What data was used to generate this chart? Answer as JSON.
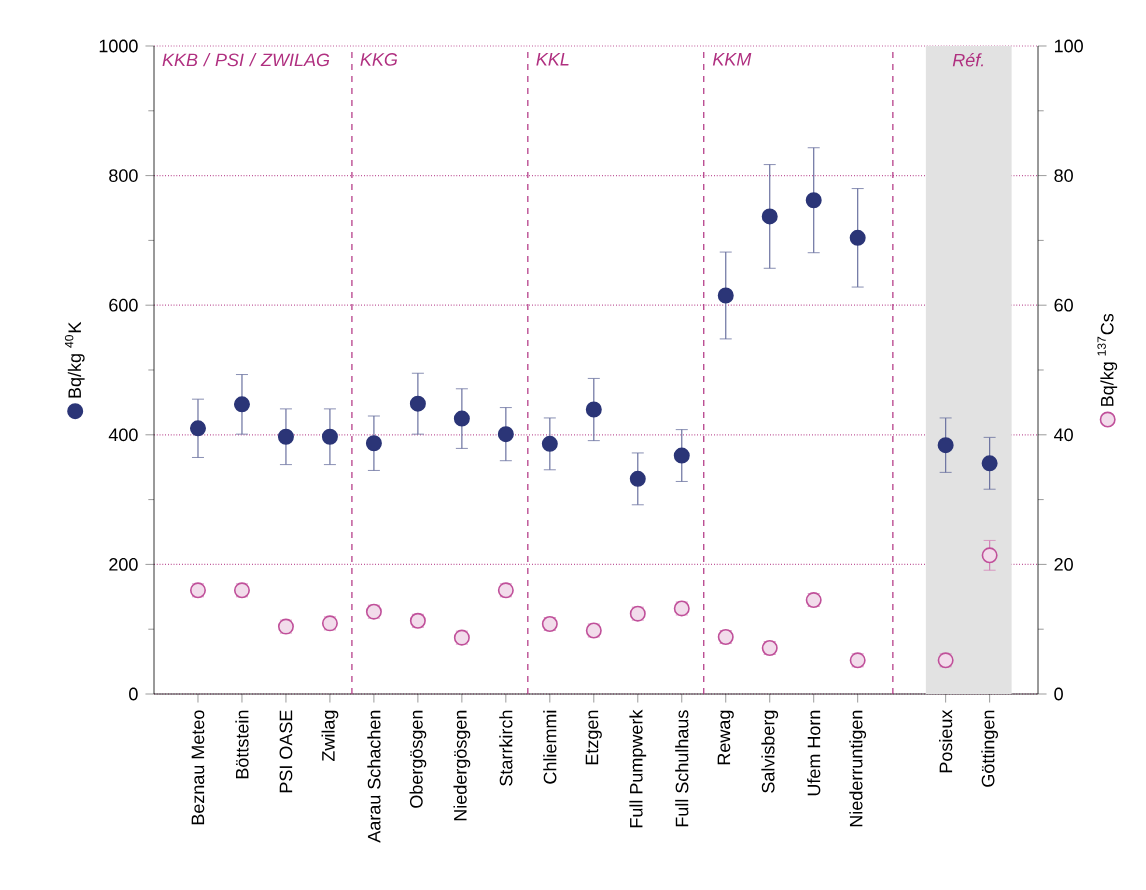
{
  "chart_data": {
    "type": "scatter",
    "categories": [
      "Beznau Meteo",
      "Böttstein",
      "PSI OASE",
      "Zwilag",
      "Aarau Schachen",
      "Obergösgen",
      "Niedergösgen",
      "Starrkirch",
      "Chliemmi",
      "Etzgen",
      "Full Pumpwerk",
      "Full Schulhaus",
      "Rewag",
      "Salvisberg",
      "Ufem Horn",
      "Niederruntigen",
      null,
      "Posieux",
      "Göttingen"
    ],
    "ylabel": "Bq/kg $^{40}$K",
    "y2label": "Bq/kg $^{137}$Cs",
    "series": [
      {
        "color": "#2b3577",
        "axis": "y",
        "values": [
          410,
          447,
          397,
          397,
          387,
          448,
          425,
          401,
          386,
          439,
          332,
          368,
          615,
          737,
          762,
          704,
          null,
          384,
          356
        ],
        "errors": [
          45,
          46,
          43,
          43,
          42,
          47,
          46,
          41,
          40,
          48,
          40,
          40,
          67,
          80,
          81,
          76,
          null,
          42,
          40
        ]
      },
      {
        "color": "#c0509a",
        "axis": "y2",
        "values": [
          16.0,
          16.0,
          10.4,
          10.9,
          12.7,
          11.3,
          8.7,
          16.0,
          10.8,
          9.8,
          12.4,
          13.2,
          8.8,
          7.1,
          14.5,
          5.2,
          null,
          5.2,
          21.4
        ],
        "errors": [
          1,
          1,
          1,
          1,
          1,
          1,
          1,
          1,
          1,
          1,
          1,
          1,
          1,
          1,
          1,
          1,
          null,
          1,
          2.3
        ]
      }
    ],
    "ylim": [
      0,
      1000
    ],
    "yticks": [
      0,
      200,
      400,
      600,
      800,
      1000
    ],
    "y2lim": [
      0,
      100
    ],
    "y2ticks": [
      0,
      20,
      40,
      60,
      80,
      100
    ],
    "grid": "y",
    "marker": "circle",
    "bands": [
      {
        "axis": "x",
        "from": "Posieux",
        "to": "Göttingen",
        "label": "Réf.",
        "color": "#e2e2e2"
      }
    ],
    "annotations": [
      "KKB / PSI / ZWILAG",
      "KKG",
      "KKL",
      "KKM"
    ]
  }
}
